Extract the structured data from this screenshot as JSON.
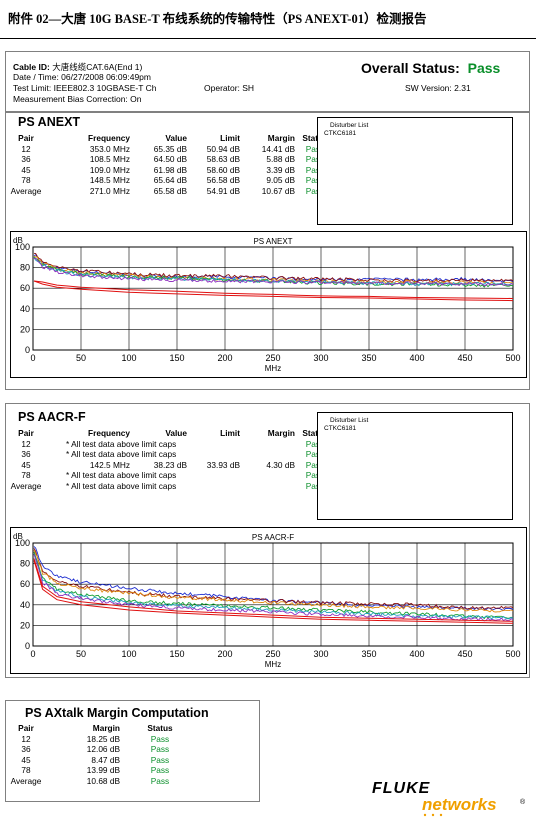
{
  "doc_title": "附件 02—大唐 10G BASE-T 布线系统的传输特性（PS ANEXT-01）检测报告",
  "header": {
    "cable_id_label": "Cable ID:",
    "cable_id_value": "大唐线缆CAT.6A(End 1)",
    "date_time": "Date / Time: 06/27/2008 06:09:49pm",
    "test_limit": "Test Limit: IEEE802.3 10GBASE-T Ch",
    "operator": "Operator: SH",
    "bias": "Measurement Bias Correction: On",
    "overall_label": "Overall Status:",
    "overall_value": "Pass",
    "sw_version": "SW Version: 2.31"
  },
  "anext": {
    "title": "PS ANEXT",
    "headers": [
      "Pair",
      "Frequency",
      "Value",
      "Limit",
      "Margin",
      "Status"
    ],
    "rows": [
      [
        "12",
        "353.0 MHz",
        "65.35 dB",
        "50.94 dB",
        "14.41 dB",
        "Pass"
      ],
      [
        "36",
        "108.5 MHz",
        "64.50 dB",
        "58.63 dB",
        "5.88 dB",
        "Pass"
      ],
      [
        "45",
        "109.0 MHz",
        "61.98 dB",
        "58.60 dB",
        "3.39 dB",
        "Pass"
      ],
      [
        "78",
        "148.5 MHz",
        "65.64 dB",
        "56.58 dB",
        "9.05 dB",
        "Pass"
      ],
      [
        "Average",
        "271.0 MHz",
        "65.58 dB",
        "54.91 dB",
        "10.67 dB",
        "Pass"
      ]
    ],
    "disturber_title": "Disturber List",
    "disturber_value": "CTKC6181"
  },
  "aacr": {
    "title": "PS AACR-F",
    "headers": [
      "Pair",
      "Frequency",
      "Value",
      "Limit",
      "Margin",
      "Status"
    ],
    "rows": [
      {
        "pair": "12",
        "note": "* All test data above limit caps",
        "status": "Pass"
      },
      {
        "pair": "36",
        "note": "* All test data above limit caps",
        "status": "Pass"
      },
      {
        "pair": "45",
        "freq": "142.5 MHz",
        "value": "38.23 dB",
        "limit": "33.93 dB",
        "margin": "4.30 dB",
        "status": "Pass"
      },
      {
        "pair": "78",
        "note": "* All test data above limit caps",
        "status": "Pass"
      },
      {
        "pair": "Average",
        "note": "* All test data above limit caps",
        "status": "Pass"
      }
    ],
    "disturber_title": "Disturber List",
    "disturber_value": "CTKC6181"
  },
  "axtalk": {
    "title": "PS AXtalk Margin Computation",
    "headers": [
      "Pair",
      "Margin",
      "Status"
    ],
    "rows": [
      [
        "12",
        "18.25 dB",
        "Pass"
      ],
      [
        "36",
        "12.06 dB",
        "Pass"
      ],
      [
        "45",
        "8.47 dB",
        "Pass"
      ],
      [
        "78",
        "13.99 dB",
        "Pass"
      ],
      [
        "Average",
        "10.68 dB",
        "Pass"
      ]
    ]
  },
  "logo": {
    "line1": "FLUKE",
    "line2": "networks",
    "mark": "®"
  },
  "colors": {
    "pass": "#0a8f2a",
    "limit": "#e01010",
    "series": [
      "#1f2fd0",
      "#8a1010",
      "#e08a10",
      "#12a030",
      "#20a0c0",
      "#9030c0"
    ]
  },
  "chart_data": [
    {
      "type": "line",
      "title": "PS ANEXT",
      "ylabel": "dB",
      "xlabel": "MHz",
      "xlim": [
        0,
        500
      ],
      "ylim": [
        0,
        100
      ],
      "xticks": [
        0,
        50,
        100,
        150,
        200,
        250,
        300,
        350,
        400,
        450,
        500
      ],
      "yticks": [
        0,
        20,
        40,
        60,
        80,
        100
      ],
      "grid": true,
      "series": [
        {
          "x": [
            1,
            10,
            25,
            50,
            100,
            150,
            200,
            250,
            300,
            350,
            400,
            450,
            500
          ],
          "y": [
            93,
            85,
            80,
            76,
            73,
            71,
            71,
            70,
            68,
            69,
            68,
            69,
            66
          ]
        },
        {
          "x": [
            1,
            10,
            25,
            50,
            100,
            150,
            200,
            250,
            300,
            350,
            400,
            450,
            500
          ],
          "y": [
            95,
            86,
            81,
            77,
            74,
            72,
            72,
            70,
            69,
            68,
            67,
            68,
            67
          ]
        },
        {
          "x": [
            1,
            10,
            25,
            50,
            100,
            150,
            200,
            250,
            300,
            350,
            400,
            450,
            500
          ],
          "y": [
            92,
            84,
            79,
            75,
            72,
            70,
            69,
            68,
            67,
            66,
            66,
            66,
            65
          ]
        },
        {
          "x": [
            1,
            10,
            25,
            50,
            100,
            150,
            200,
            250,
            300,
            350,
            400,
            450,
            500
          ],
          "y": [
            91,
            83,
            78,
            74,
            71,
            70,
            68,
            67,
            65,
            64,
            64,
            63,
            62
          ]
        },
        {
          "x": [
            1,
            10,
            25,
            50,
            100,
            150,
            200,
            250,
            300,
            350,
            400,
            450,
            500
          ],
          "y": [
            90,
            82,
            77,
            73,
            70,
            69,
            68,
            67,
            66,
            65,
            64,
            64,
            64
          ]
        },
        {
          "x": [
            1,
            10,
            25,
            50,
            100,
            150,
            200,
            250,
            300,
            350,
            400,
            450,
            500
          ],
          "y": [
            89,
            81,
            76,
            72,
            69,
            68,
            67,
            66,
            66,
            65,
            65,
            64,
            64
          ]
        },
        {
          "limit": true,
          "x": [
            1,
            10,
            25,
            50,
            100,
            150,
            200,
            250,
            300,
            350,
            400,
            450,
            500
          ],
          "y": [
            67,
            66,
            63,
            61,
            58.5,
            57,
            55,
            54,
            52.5,
            52,
            51,
            50.5,
            50
          ]
        },
        {
          "limit": true,
          "x": [
            1,
            10,
            25,
            50,
            100,
            150,
            200,
            250,
            300,
            350,
            400,
            450,
            500
          ],
          "y": [
            67,
            64,
            61,
            59,
            56,
            54.5,
            53,
            52,
            51,
            50.5,
            49.5,
            48.5,
            48
          ]
        }
      ]
    },
    {
      "type": "line",
      "title": "PS AACR-F",
      "ylabel": "dB",
      "xlabel": "MHz",
      "xlim": [
        0,
        500
      ],
      "ylim": [
        0,
        100
      ],
      "xticks": [
        0,
        50,
        100,
        150,
        200,
        250,
        300,
        350,
        400,
        450,
        500
      ],
      "yticks": [
        0,
        20,
        40,
        60,
        80,
        100
      ],
      "grid": true,
      "series": [
        {
          "x": [
            1,
            10,
            25,
            50,
            100,
            150,
            200,
            250,
            300,
            350,
            400,
            450,
            500
          ],
          "y": [
            98,
            78,
            68,
            62,
            56,
            51,
            48,
            44,
            42,
            39,
            38,
            37,
            35
          ]
        },
        {
          "x": [
            1,
            10,
            25,
            50,
            100,
            150,
            200,
            250,
            300,
            350,
            400,
            450,
            500
          ],
          "y": [
            96,
            73,
            63,
            58,
            52,
            48,
            46,
            44,
            42,
            41,
            40,
            37,
            37
          ]
        },
        {
          "x": [
            1,
            10,
            25,
            50,
            100,
            150,
            200,
            250,
            300,
            350,
            400,
            450,
            500
          ],
          "y": [
            94,
            71,
            61,
            56,
            51,
            47,
            45,
            42,
            40,
            38,
            37,
            35,
            34
          ]
        },
        {
          "x": [
            1,
            10,
            25,
            50,
            100,
            150,
            200,
            250,
            300,
            350,
            400,
            450,
            500
          ],
          "y": [
            92,
            66,
            55,
            50,
            44,
            41,
            39,
            37,
            35,
            33,
            31,
            29,
            27
          ]
        },
        {
          "x": [
            1,
            10,
            25,
            50,
            100,
            150,
            200,
            250,
            300,
            350,
            400,
            450,
            500
          ],
          "y": [
            90,
            64,
            53,
            48,
            42,
            39,
            37,
            35,
            33,
            31,
            29,
            28,
            27
          ]
        },
        {
          "x": [
            1,
            10,
            25,
            50,
            100,
            150,
            200,
            250,
            300,
            350,
            400,
            450,
            500
          ],
          "y": [
            89,
            62,
            51,
            46,
            40,
            37,
            35,
            33,
            31,
            29,
            28,
            26,
            26
          ]
        },
        {
          "limit": true,
          "x": [
            1,
            10,
            25,
            50,
            100,
            150,
            200,
            250,
            300,
            350,
            400,
            450,
            500
          ],
          "y": [
            85,
            58,
            48,
            43,
            38,
            34,
            32,
            30,
            28,
            27,
            26,
            25,
            24
          ]
        },
        {
          "limit": true,
          "x": [
            1,
            10,
            25,
            50,
            100,
            150,
            200,
            250,
            300,
            350,
            400,
            450,
            500
          ],
          "y": [
            83,
            55,
            45,
            40,
            35,
            32,
            30,
            28,
            26,
            25,
            24,
            23,
            22
          ]
        }
      ]
    }
  ]
}
